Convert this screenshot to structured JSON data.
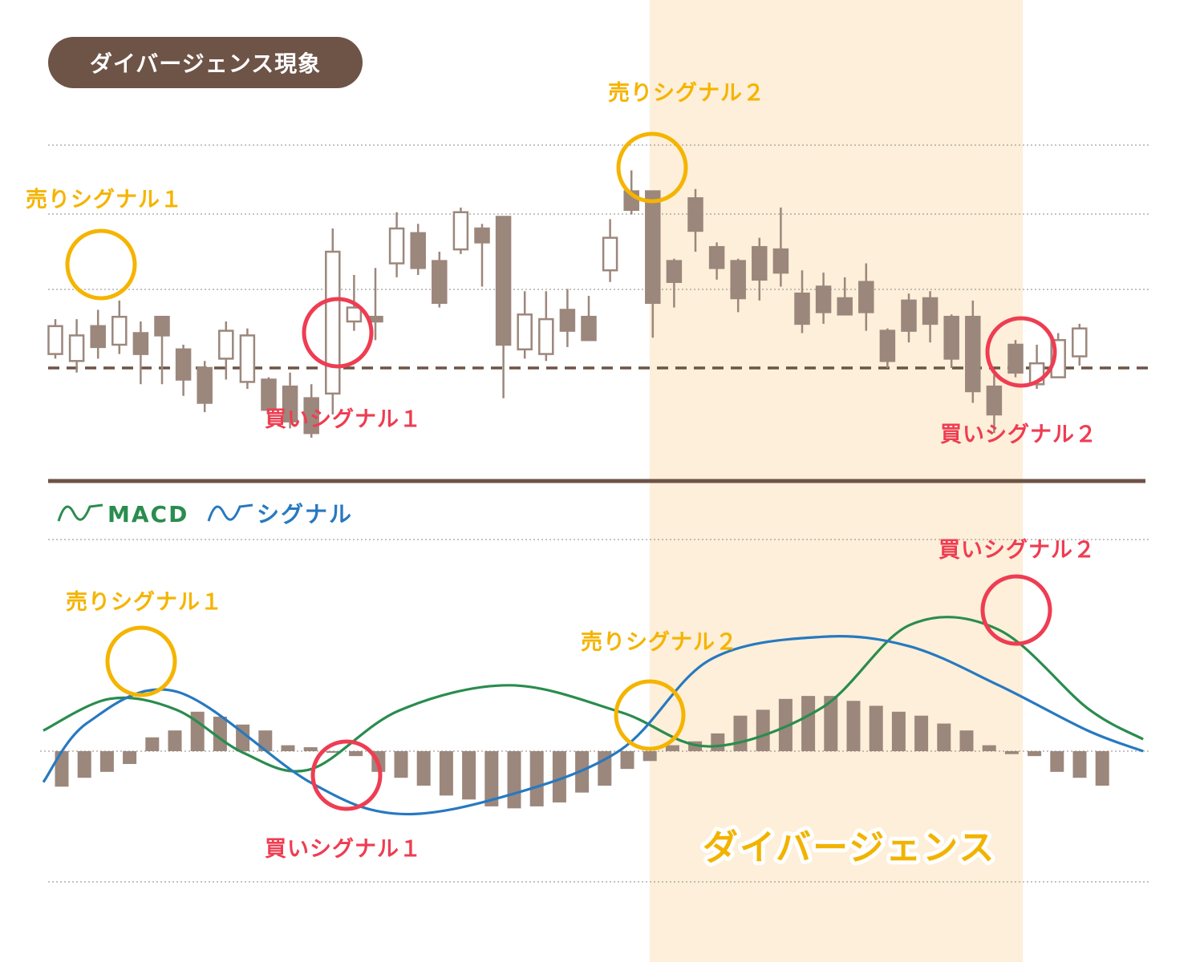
{
  "title": "ダイバージェンス現象",
  "colors": {
    "candle": "#9c877c",
    "title_bg": "#6e5347",
    "macd": "#2a8c4e",
    "signal": "#2779c0",
    "sell": "#f5b400",
    "buy": "#ee3d52",
    "divergence_band": "#fdefd9",
    "support_line": "#6e5347"
  },
  "legend": {
    "macd": "MACD",
    "signal": "シグナル"
  },
  "annotations": {
    "price_sell_1": "売りシグナル１",
    "price_sell_2": "売りシグナル２",
    "price_buy_1": "買いシグナル１",
    "price_buy_2": "買いシグナル２",
    "macd_sell_1": "売りシグナル１",
    "macd_sell_2": "売りシグナル２",
    "macd_buy_1": "買いシグナル１",
    "macd_buy_2": "買いシグナル２",
    "divergence": "ダイバージェンス"
  },
  "chart_data": [
    {
      "type": "candlestick",
      "support_level": 20,
      "ylim": [
        0,
        100
      ],
      "candles": [
        {
          "o": 26,
          "c": 38,
          "h": 41,
          "l": 24
        },
        {
          "o": 23,
          "c": 34,
          "h": 41,
          "l": 18
        },
        {
          "o": 38,
          "c": 29,
          "h": 45,
          "l": 24
        },
        {
          "o": 30,
          "c": 42,
          "h": 49,
          "l": 26
        },
        {
          "o": 35,
          "c": 26,
          "h": 40,
          "l": 13
        },
        {
          "o": 42,
          "c": 34,
          "h": 42,
          "l": 13
        },
        {
          "o": 28,
          "c": 15,
          "h": 30,
          "l": 8
        },
        {
          "o": 20,
          "c": 5,
          "h": 23,
          "l": 1
        },
        {
          "o": 24,
          "c": 36,
          "h": 40,
          "l": 15
        },
        {
          "o": 14,
          "c": 34,
          "h": 37,
          "l": 11
        },
        {
          "o": 15,
          "c": 2,
          "h": 16,
          "l": -4
        },
        {
          "o": 12,
          "c": -3,
          "h": 18,
          "l": -6
        },
        {
          "o": 7,
          "c": -8,
          "h": 13,
          "l": -10
        },
        {
          "o": 9,
          "c": 70,
          "h": 80,
          "l": 0
        },
        {
          "o": 40,
          "c": 46,
          "h": 60,
          "l": 36
        },
        {
          "o": 42,
          "c": 40,
          "h": 63,
          "l": 32
        },
        {
          "o": 65,
          "c": 80,
          "h": 87,
          "l": 59
        },
        {
          "o": 78,
          "c": 63,
          "h": 82,
          "l": 60
        },
        {
          "o": 66,
          "c": 48,
          "h": 70,
          "l": 46
        },
        {
          "o": 71,
          "c": 87,
          "h": 89,
          "l": 69
        },
        {
          "o": 80,
          "c": 74,
          "h": 82,
          "l": 55
        },
        {
          "o": 85,
          "c": 30,
          "h": 85,
          "l": 7
        },
        {
          "o": 28,
          "c": 43,
          "h": 53,
          "l": 24
        },
        {
          "o": 26,
          "c": 41,
          "h": 53,
          "l": 23
        },
        {
          "o": 45,
          "c": 36,
          "h": 54,
          "l": 29
        },
        {
          "o": 42,
          "c": 32,
          "h": 51,
          "l": 32
        },
        {
          "o": 62,
          "c": 76,
          "h": 84,
          "l": 57
        },
        {
          "o": 96,
          "c": 88,
          "h": 105,
          "l": 86
        },
        {
          "o": 96,
          "c": 48,
          "h": 96,
          "l": 33
        },
        {
          "o": 66,
          "c": 57,
          "h": 67,
          "l": 46
        },
        {
          "o": 93,
          "c": 79,
          "h": 97,
          "l": 70
        },
        {
          "o": 72,
          "c": 63,
          "h": 74,
          "l": 58
        },
        {
          "o": 66,
          "c": 50,
          "h": 67,
          "l": 44
        },
        {
          "o": 72,
          "c": 58,
          "h": 76,
          "l": 49
        },
        {
          "o": 71,
          "c": 61,
          "h": 89,
          "l": 55
        },
        {
          "o": 52,
          "c": 39,
          "h": 62,
          "l": 35
        },
        {
          "o": 55,
          "c": 44,
          "h": 61,
          "l": 39
        },
        {
          "o": 50,
          "c": 43,
          "h": 59,
          "l": 43
        },
        {
          "o": 57,
          "c": 44,
          "h": 65,
          "l": 36
        },
        {
          "o": 36,
          "c": 23,
          "h": 37,
          "l": 20
        },
        {
          "o": 49,
          "c": 36,
          "h": 52,
          "l": 31
        },
        {
          "o": 50,
          "c": 39,
          "h": 53,
          "l": 31
        },
        {
          "o": 42,
          "c": 24,
          "h": 43,
          "l": 20
        },
        {
          "o": 42,
          "c": 10,
          "h": 49,
          "l": 5
        },
        {
          "o": 12,
          "c": 0,
          "h": 17,
          "l": -8
        },
        {
          "o": 30,
          "c": 18,
          "h": 32,
          "l": 16
        },
        {
          "o": 13,
          "c": 22,
          "h": 30,
          "l": 11
        },
        {
          "o": 16,
          "c": 32,
          "h": 35,
          "l": 17
        },
        {
          "o": 25,
          "c": 37,
          "h": 39,
          "l": 21
        }
      ]
    },
    {
      "type": "bar",
      "name": "histogram",
      "values": [
        -3.6,
        -2.7,
        -2.1,
        -1.3,
        1.4,
        2.1,
        4.0,
        3.5,
        2.7,
        2.1,
        0.6,
        0.4,
        -0.1,
        -0.5,
        -2.1,
        -2.7,
        -3.5,
        -4.5,
        -4.9,
        -5.6,
        -5.8,
        -5.6,
        -5.2,
        -4.2,
        -3.5,
        -1.8,
        -1.0,
        0.6,
        1.0,
        1.8,
        3.6,
        4.2,
        5.3,
        5.6,
        5.6,
        5.1,
        4.6,
        4.0,
        3.6,
        2.8,
        2.1,
        0.6,
        -0.3,
        -0.5,
        -2.1,
        -2.7,
        -3.5
      ],
      "ylim": [
        -8,
        8
      ]
    },
    {
      "type": "line",
      "series": [
        {
          "name": "MACD",
          "x": [
            0,
            3,
            6,
            9,
            12,
            16,
            21,
            26,
            30,
            35,
            39,
            43,
            47,
            49.5
          ],
          "y": [
            2.6,
            6.6,
            5.2,
            -0.2,
            -2.3,
            5.1,
            8.3,
            4.9,
            0.6,
            5.4,
            15.9,
            15.3,
            5.4,
            1.5
          ]
        },
        {
          "name": "シグナル",
          "x": [
            0,
            2,
            6,
            12,
            16,
            21,
            26,
            30,
            35,
            39,
            43,
            47,
            49.5
          ],
          "y": [
            -3.9,
            3.6,
            7.5,
            -3.9,
            -7.9,
            -5.5,
            0.2,
            11.5,
            14.4,
            13.2,
            8.3,
            2.6,
            0
          ]
        }
      ],
      "ylim": [
        -14,
        18
      ]
    }
  ]
}
